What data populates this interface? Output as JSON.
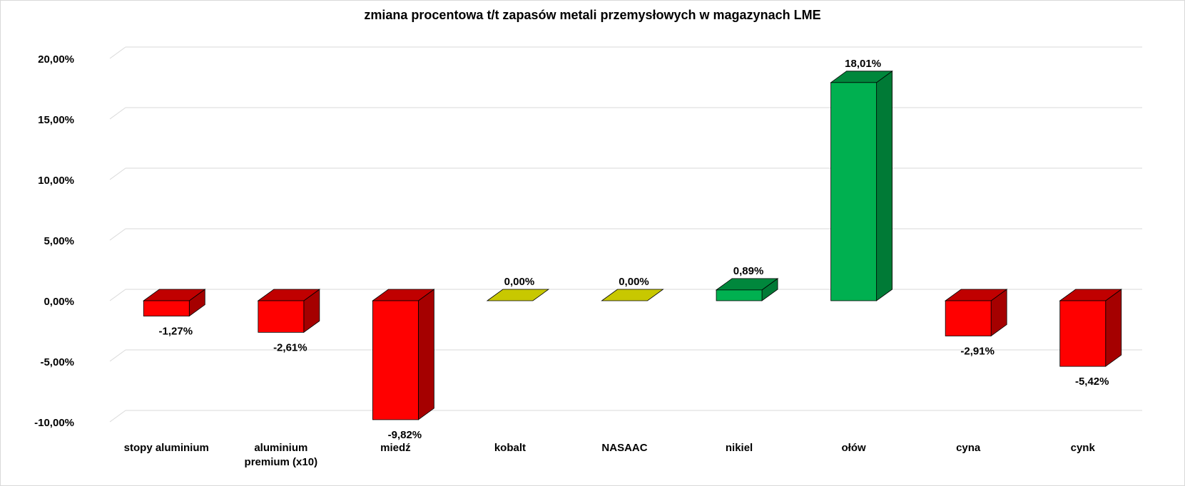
{
  "chart_data": {
    "type": "bar",
    "title": "zmiana procentowa t/t zapasów metali przemysłowych w magazynach LME",
    "categories": [
      "stopy aluminium",
      "aluminium premium (x10)",
      "miedź",
      "kobalt",
      "NASAAC",
      "nikiel",
      "ołów",
      "cyna",
      "cynk"
    ],
    "category_lines": [
      [
        "stopy aluminium"
      ],
      [
        "aluminium",
        "premium (x10)"
      ],
      [
        "miedź"
      ],
      [
        "kobalt"
      ],
      [
        "NASAAC"
      ],
      [
        "nikiel"
      ],
      [
        "ołów"
      ],
      [
        "cyna"
      ],
      [
        "cynk"
      ]
    ],
    "values": [
      -1.27,
      -2.61,
      -9.82,
      0.0,
      0.0,
      0.89,
      18.01,
      -2.91,
      -5.42
    ],
    "data_labels": [
      "-1,27%",
      "-2,61%",
      "-9,82%",
      "0,00%",
      "0,00%",
      "0,89%",
      "18,01%",
      "-2,91%",
      "-5,42%"
    ],
    "ylim": [
      -10,
      20
    ],
    "yticks": [
      -10,
      -5,
      0,
      5,
      10,
      15,
      20
    ],
    "ytick_labels": [
      "-10,00%",
      "-5,00%",
      "0,00%",
      "5,00%",
      "10,00%",
      "15,00%",
      "20,00%"
    ],
    "grid": true,
    "legend": "none",
    "colors": {
      "negative": {
        "front": "#ff0000",
        "side": "#a50000",
        "top": "#c00000"
      },
      "zero": {
        "front": "#c8c800",
        "side": "#8f8f00",
        "top": "#c8c800"
      },
      "positive": {
        "front": "#00b050",
        "side": "#007a36",
        "top": "#00873c"
      }
    }
  }
}
